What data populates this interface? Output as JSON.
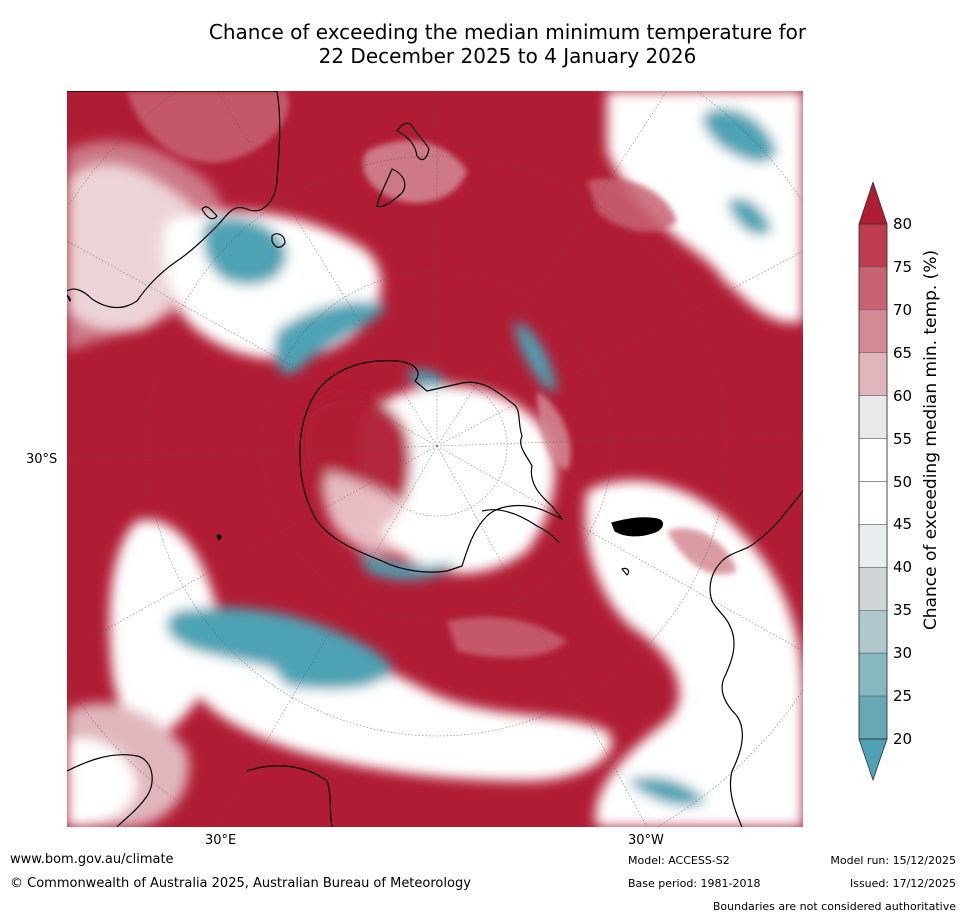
{
  "title": {
    "line1": "Chance of exceeding the median minimum temperature for",
    "line2": "22 December 2025 to 4 January 2026"
  },
  "map": {
    "projection": "south polar stereographic",
    "labels": {
      "lat": "30°S",
      "lon_east": "30°E",
      "lon_west": "30°W"
    },
    "colors": {
      "above_80": "#b01c34",
      "75_80": "#be3c4e",
      "70_75": "#c86472",
      "65_70": "#d48a94",
      "60_65": "#e0b6bc",
      "55_60": "#e9e9ea",
      "45_55": "#ffffff",
      "40_45": "#e8eef0",
      "35_40": "#d0d6d8",
      "30_35": "#aec8cc",
      "below_30": "#4da3b4",
      "land_outline": "#000000"
    }
  },
  "colorbar": {
    "label": "Chance of exceeding median min. temp. (%)",
    "ticks": [
      "80",
      "75",
      "70",
      "65",
      "60",
      "55",
      "50",
      "45",
      "40",
      "35",
      "30",
      "25",
      "20"
    ],
    "bands": [
      "#be3c4e",
      "#c86472",
      "#d48a94",
      "#e0b6bc",
      "#e9e9ea",
      "#ffffff",
      "#ffffff",
      "#e8eef0",
      "#d0d6d8",
      "#aec8cc",
      "#86b8c2",
      "#68a8b5"
    ],
    "top_extension_color": "#b01c34",
    "bottom_extension_color": "#4da3b4"
  },
  "footer": {
    "website": "www.bom.gov.au/climate",
    "copyright": "© Commonwealth of Australia 2025, Australian Bureau of Meteorology",
    "model": "Model: ACCESS-S2",
    "base_period": "Base period: 1981-2018",
    "model_run": "Model run: 15/12/2025",
    "issued": "Issued: 17/12/2025",
    "disclaimer": "Boundaries are not considered authoritative"
  }
}
